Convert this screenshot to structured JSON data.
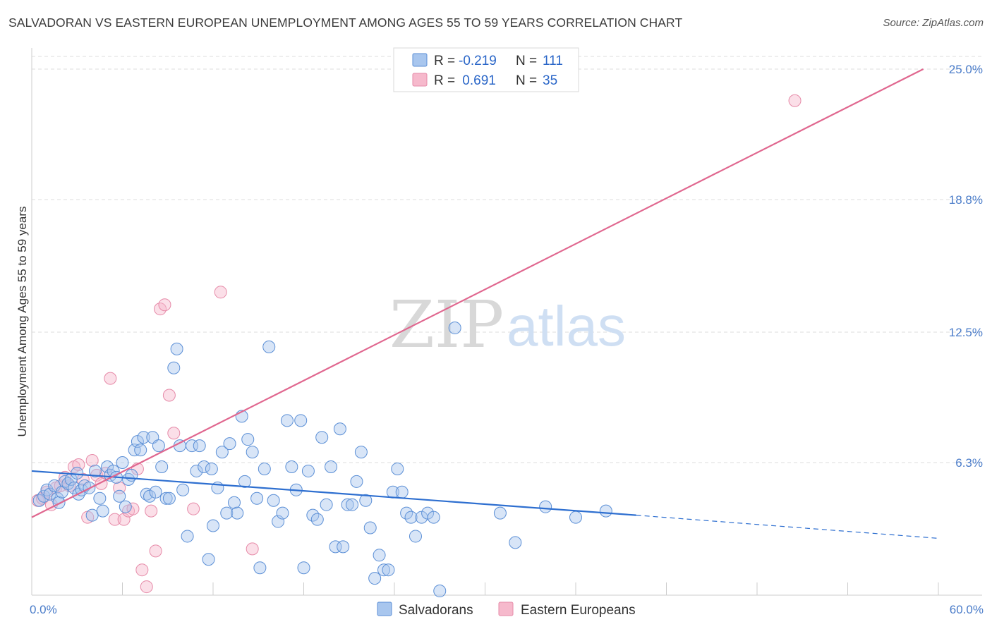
{
  "header": {
    "title": "SALVADORAN VS EASTERN EUROPEAN UNEMPLOYMENT AMONG AGES 55 TO 59 YEARS CORRELATION CHART",
    "source": "Source: ZipAtlas.com"
  },
  "watermark": {
    "zip": "ZIP",
    "atlas": "atlas"
  },
  "legend": {
    "rows": [
      {
        "r_label": "R =",
        "r_value": "-0.219",
        "n_label": "N =",
        "n_value": "111"
      },
      {
        "r_label": "R =",
        "r_value": " 0.691",
        "n_label": "N =",
        "n_value": "35"
      }
    ]
  },
  "colors": {
    "blue_fill": "#a8c6ee",
    "blue_stroke": "#5b8fd6",
    "blue_line": "#2e6fd0",
    "pink_fill": "#f6b9cc",
    "pink_stroke": "#e68aa8",
    "pink_line": "#e0678f",
    "grid": "#dddddd",
    "axis_text": "#4a7cc9"
  },
  "chart_data": {
    "type": "scatter",
    "title": "SALVADORAN VS EASTERN EUROPEAN UNEMPLOYMENT AMONG AGES 55 TO 59 YEARS CORRELATION CHART",
    "xlabel": "",
    "ylabel": "Unemployment Among Ages 55 to 59 years",
    "xlim": [
      0,
      60
    ],
    "ylim": [
      0,
      25.5
    ],
    "x_tick_labels": [
      {
        "value": 0,
        "label": "0.0%"
      },
      {
        "value": 60,
        "label": "60.0%"
      }
    ],
    "y_tick_labels": [
      {
        "value": 6.3,
        "label": "6.3%"
      },
      {
        "value": 12.5,
        "label": "12.5%"
      },
      {
        "value": 18.8,
        "label": "18.8%"
      },
      {
        "value": 25.0,
        "label": "25.0%"
      }
    ],
    "x_minor_ticks": [
      6,
      12,
      18,
      24,
      30,
      36,
      42,
      48,
      54,
      60
    ],
    "series": [
      {
        "name": "Salvadorans",
        "color": "#a8c6ee",
        "r": -0.219,
        "n": 111,
        "trend": {
          "x0": 0,
          "y0": 5.9,
          "x1": 40,
          "y1": 3.8,
          "dash_x1": 60,
          "dash_y1": 2.7
        },
        "points": [
          [
            0.5,
            4.5
          ],
          [
            0.8,
            4.7
          ],
          [
            1.0,
            5.0
          ],
          [
            1.2,
            4.8
          ],
          [
            1.5,
            5.2
          ],
          [
            1.7,
            4.6
          ],
          [
            1.8,
            4.4
          ],
          [
            2.0,
            4.9
          ],
          [
            2.2,
            5.4
          ],
          [
            2.4,
            5.3
          ],
          [
            2.6,
            5.5
          ],
          [
            2.8,
            5.1
          ],
          [
            3.0,
            5.8
          ],
          [
            3.1,
            4.8
          ],
          [
            3.3,
            5.0
          ],
          [
            3.5,
            5.2
          ],
          [
            3.8,
            5.1
          ],
          [
            4.0,
            3.8
          ],
          [
            4.2,
            5.9
          ],
          [
            4.5,
            4.6
          ],
          [
            4.7,
            4.0
          ],
          [
            5.0,
            6.1
          ],
          [
            5.2,
            5.7
          ],
          [
            5.4,
            5.9
          ],
          [
            5.6,
            5.6
          ],
          [
            5.8,
            4.7
          ],
          [
            6.0,
            6.3
          ],
          [
            6.2,
            4.2
          ],
          [
            6.4,
            5.5
          ],
          [
            6.6,
            5.7
          ],
          [
            6.8,
            6.9
          ],
          [
            7.0,
            7.3
          ],
          [
            7.2,
            6.9
          ],
          [
            7.4,
            7.5
          ],
          [
            7.6,
            4.8
          ],
          [
            7.8,
            4.7
          ],
          [
            8.0,
            7.5
          ],
          [
            8.2,
            4.9
          ],
          [
            8.4,
            7.1
          ],
          [
            8.6,
            6.1
          ],
          [
            8.9,
            4.6
          ],
          [
            9.1,
            4.6
          ],
          [
            9.4,
            10.8
          ],
          [
            9.6,
            11.7
          ],
          [
            9.8,
            7.1
          ],
          [
            10.0,
            5.0
          ],
          [
            10.3,
            2.8
          ],
          [
            10.6,
            7.1
          ],
          [
            10.9,
            5.9
          ],
          [
            11.1,
            7.1
          ],
          [
            11.4,
            6.1
          ],
          [
            11.7,
            1.7
          ],
          [
            11.9,
            6.0
          ],
          [
            12.0,
            3.3
          ],
          [
            12.3,
            5.1
          ],
          [
            12.6,
            6.8
          ],
          [
            12.9,
            3.9
          ],
          [
            13.1,
            7.2
          ],
          [
            13.4,
            4.4
          ],
          [
            13.6,
            3.9
          ],
          [
            13.9,
            8.5
          ],
          [
            14.1,
            5.4
          ],
          [
            14.3,
            7.4
          ],
          [
            14.6,
            6.8
          ],
          [
            14.9,
            4.6
          ],
          [
            15.1,
            1.3
          ],
          [
            15.4,
            6.0
          ],
          [
            15.7,
            11.8
          ],
          [
            16.0,
            4.5
          ],
          [
            16.3,
            3.5
          ],
          [
            16.6,
            3.9
          ],
          [
            16.9,
            8.3
          ],
          [
            17.2,
            6.1
          ],
          [
            17.5,
            5.0
          ],
          [
            17.8,
            8.3
          ],
          [
            18.0,
            1.3
          ],
          [
            18.3,
            5.9
          ],
          [
            18.6,
            3.8
          ],
          [
            18.9,
            3.6
          ],
          [
            19.2,
            7.5
          ],
          [
            19.5,
            4.3
          ],
          [
            19.8,
            6.1
          ],
          [
            20.1,
            2.3
          ],
          [
            20.4,
            7.9
          ],
          [
            20.6,
            2.3
          ],
          [
            20.9,
            4.3
          ],
          [
            21.2,
            4.3
          ],
          [
            21.5,
            5.4
          ],
          [
            21.8,
            6.8
          ],
          [
            22.1,
            4.5
          ],
          [
            22.4,
            3.2
          ],
          [
            22.7,
            0.8
          ],
          [
            23.0,
            1.9
          ],
          [
            23.3,
            1.2
          ],
          [
            23.6,
            1.2
          ],
          [
            23.9,
            4.9
          ],
          [
            24.2,
            6.0
          ],
          [
            24.5,
            4.9
          ],
          [
            24.8,
            3.9
          ],
          [
            25.1,
            3.7
          ],
          [
            25.4,
            2.8
          ],
          [
            25.8,
            3.7
          ],
          [
            26.2,
            3.9
          ],
          [
            26.6,
            3.7
          ],
          [
            27.0,
            0.2
          ],
          [
            28.0,
            12.7
          ],
          [
            31.0,
            3.9
          ],
          [
            32.0,
            2.5
          ],
          [
            34.0,
            4.2
          ],
          [
            36.0,
            3.7
          ],
          [
            38.0,
            4.0
          ]
        ]
      },
      {
        "name": "Eastern Europeans",
        "color": "#f6b9cc",
        "r": 0.691,
        "n": 35,
        "trend": {
          "x0": 0,
          "y0": 3.7,
          "x1": 59,
          "y1": 25.0
        },
        "points": [
          [
            0.4,
            4.5
          ],
          [
            0.7,
            4.6
          ],
          [
            1.0,
            4.9
          ],
          [
            1.3,
            4.3
          ],
          [
            1.6,
            5.1
          ],
          [
            1.9,
            5.2
          ],
          [
            2.2,
            5.6
          ],
          [
            2.5,
            5.2
          ],
          [
            2.8,
            6.1
          ],
          [
            3.1,
            6.2
          ],
          [
            3.4,
            5.5
          ],
          [
            3.7,
            3.7
          ],
          [
            4.0,
            6.4
          ],
          [
            4.3,
            5.7
          ],
          [
            4.6,
            5.3
          ],
          [
            4.9,
            5.8
          ],
          [
            5.2,
            10.3
          ],
          [
            5.5,
            3.6
          ],
          [
            5.8,
            5.1
          ],
          [
            6.1,
            3.6
          ],
          [
            6.4,
            4.0
          ],
          [
            6.7,
            4.1
          ],
          [
            7.0,
            6.0
          ],
          [
            7.3,
            1.2
          ],
          [
            7.6,
            0.4
          ],
          [
            7.9,
            4.0
          ],
          [
            8.2,
            2.1
          ],
          [
            8.5,
            13.6
          ],
          [
            8.8,
            13.8
          ],
          [
            9.1,
            9.5
          ],
          [
            9.4,
            7.7
          ],
          [
            10.7,
            4.1
          ],
          [
            12.5,
            14.4
          ],
          [
            14.6,
            2.2
          ],
          [
            50.5,
            23.5
          ]
        ]
      }
    ]
  },
  "bottom_legend": {
    "items": [
      {
        "label": "Salvadorans"
      },
      {
        "label": "Eastern Europeans"
      }
    ]
  }
}
